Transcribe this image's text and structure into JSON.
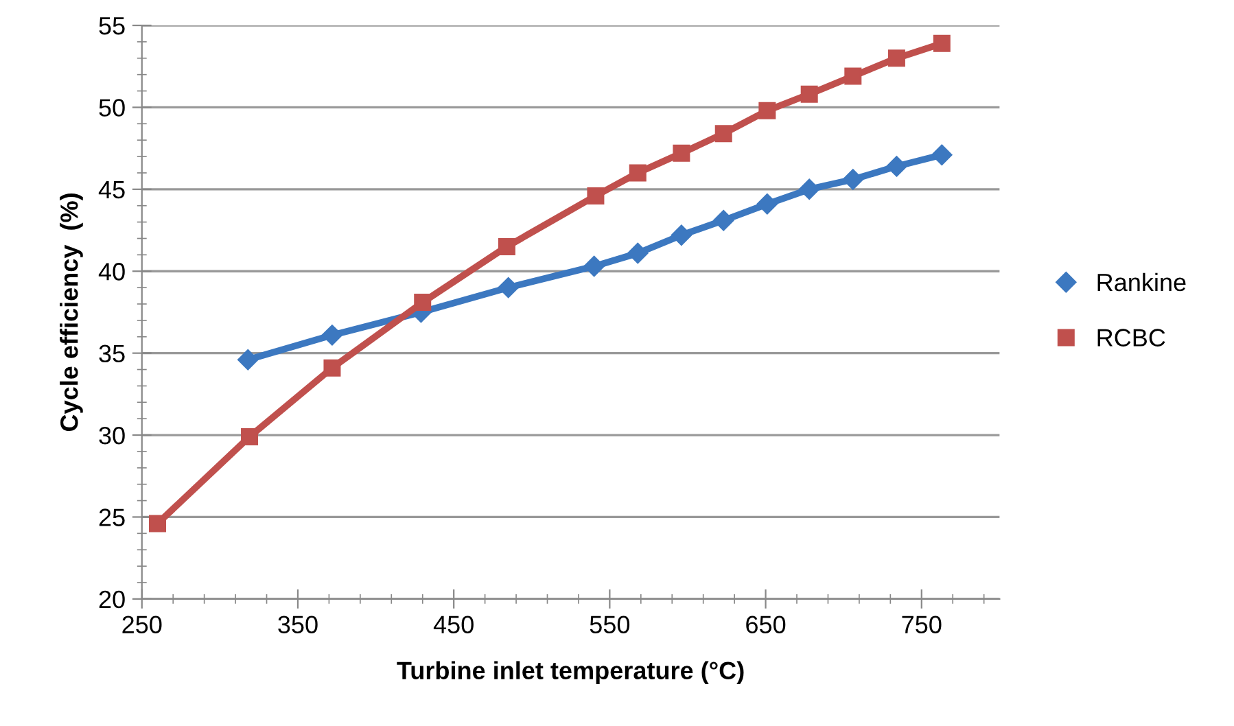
{
  "chart_data": {
    "type": "line",
    "xlabel": "Turbine inlet temperature (°C)",
    "ylabel": "Cycle efficiency  (%)",
    "xlim": [
      250,
      800
    ],
    "xticks": [
      250,
      350,
      450,
      550,
      650,
      750
    ],
    "ylim": [
      20,
      55
    ],
    "yticks": [
      20,
      25,
      30,
      35,
      40,
      45,
      50,
      55
    ],
    "grid": "y",
    "legend": "right",
    "series": [
      {
        "name": "Rankine",
        "color": "#3c78c0",
        "marker": "diamond",
        "x": [
          318,
          372,
          429,
          485,
          540,
          568,
          596,
          623,
          651,
          678,
          706,
          734,
          763
        ],
        "values": [
          34.6,
          36.1,
          37.5,
          39.0,
          40.3,
          41.1,
          42.2,
          43.1,
          44.1,
          45.0,
          45.6,
          46.4,
          47.1
        ]
      },
      {
        "name": "RCBC",
        "color": "#c0504d",
        "marker": "square",
        "x": [
          260,
          319,
          372,
          430,
          484,
          541,
          568,
          596,
          623,
          651,
          678,
          706,
          734,
          763
        ],
        "values": [
          24.6,
          29.9,
          34.1,
          38.1,
          41.5,
          44.6,
          46.0,
          47.2,
          48.4,
          49.8,
          50.8,
          51.9,
          53.0,
          53.9
        ]
      }
    ]
  }
}
